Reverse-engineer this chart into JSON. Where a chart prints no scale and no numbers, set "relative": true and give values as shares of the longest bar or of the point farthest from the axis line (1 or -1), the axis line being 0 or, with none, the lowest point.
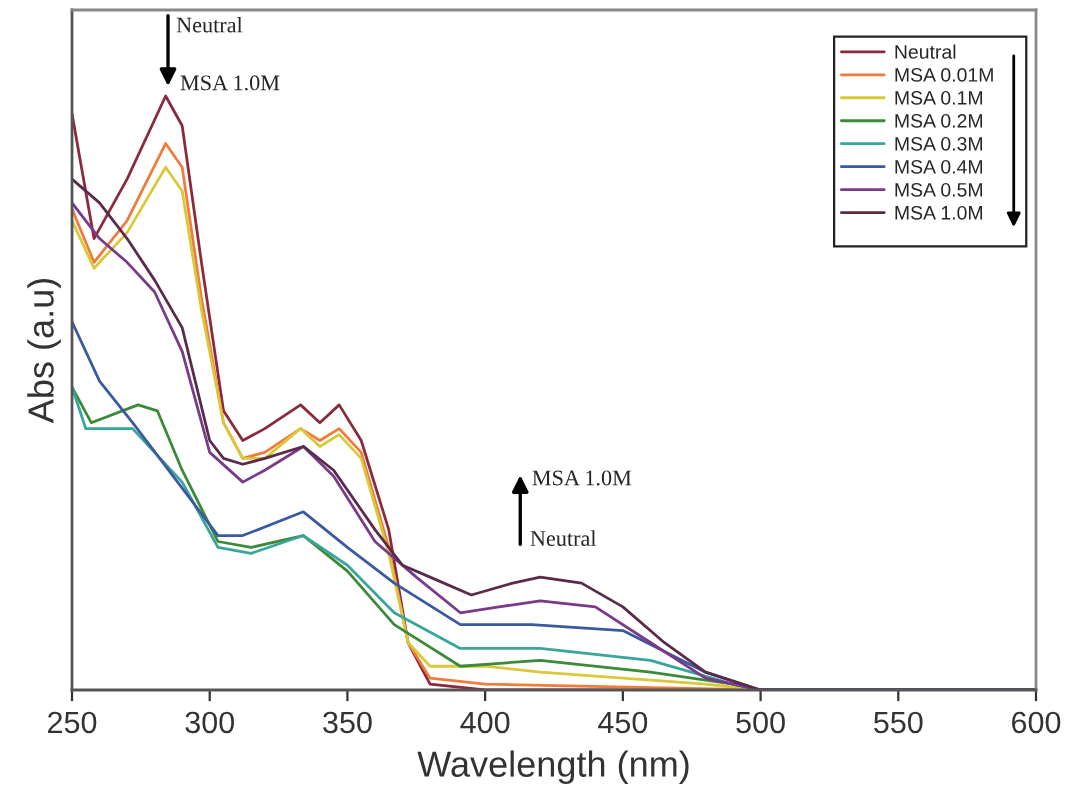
{
  "chart_data": {
    "type": "line",
    "relative": true,
    "xlabel": "Wavelength (nm)",
    "ylabel": "Abs (a.u)",
    "xlim": [
      250,
      600
    ],
    "xticks": [
      250,
      300,
      350,
      400,
      450,
      500,
      550,
      600
    ],
    "legend": "top right",
    "grid": false,
    "marker": "none",
    "line_style": "solid",
    "annotations": [
      "Neutral",
      "MSA 1.0M",
      "MSA 1.0M",
      "Neutral"
    ],
    "series": [
      {
        "name": "Neutral",
        "color": "#8b2a3c",
        "x": [
          250,
          258,
          270,
          284,
          290,
          297,
          305,
          312,
          320,
          333,
          340,
          347,
          355,
          365,
          372,
          380,
          400,
          500,
          600
        ],
        "values": [
          0.97,
          0.76,
          0.86,
          1.0,
          0.95,
          0.72,
          0.47,
          0.42,
          0.44,
          0.48,
          0.45,
          0.48,
          0.42,
          0.27,
          0.08,
          0.01,
          0,
          0,
          0
        ]
      },
      {
        "name": "MSA 0.01M",
        "color": "#f07c3c",
        "x": [
          250,
          258,
          270,
          284,
          290,
          297,
          305,
          312,
          320,
          333,
          340,
          347,
          355,
          365,
          372,
          380,
          400,
          500,
          600
        ],
        "values": [
          0.81,
          0.72,
          0.79,
          0.92,
          0.88,
          0.66,
          0.45,
          0.39,
          0.4,
          0.44,
          0.42,
          0.44,
          0.4,
          0.24,
          0.08,
          0.02,
          0.01,
          0,
          0
        ]
      },
      {
        "name": "MSA 0.1M",
        "color": "#d8c83a",
        "x": [
          250,
          258,
          270,
          284,
          290,
          297,
          305,
          312,
          320,
          333,
          340,
          347,
          355,
          365,
          372,
          380,
          400,
          420,
          450,
          480,
          500,
          600
        ],
        "values": [
          0.79,
          0.71,
          0.77,
          0.88,
          0.84,
          0.64,
          0.45,
          0.39,
          0.39,
          0.44,
          0.41,
          0.43,
          0.39,
          0.23,
          0.08,
          0.04,
          0.04,
          0.03,
          0.02,
          0.01,
          0,
          0
        ]
      },
      {
        "name": "MSA 0.2M",
        "color": "#3a8a3a",
        "x": [
          250,
          257,
          274,
          281,
          290,
          303,
          315,
          334,
          350,
          367,
          391,
          420,
          460,
          490,
          500,
          600
        ],
        "values": [
          0.51,
          0.45,
          0.48,
          0.47,
          0.37,
          0.25,
          0.24,
          0.26,
          0.2,
          0.11,
          0.04,
          0.05,
          0.03,
          0.01,
          0,
          0
        ]
      },
      {
        "name": "MSA 0.3M",
        "color": "#3aa59a",
        "x": [
          250,
          255,
          272,
          290,
          303,
          315,
          334,
          350,
          367,
          391,
          420,
          460,
          490,
          500,
          600
        ],
        "values": [
          0.51,
          0.44,
          0.44,
          0.35,
          0.24,
          0.23,
          0.26,
          0.21,
          0.13,
          0.07,
          0.07,
          0.05,
          0.01,
          0,
          0
        ]
      },
      {
        "name": "MSA 0.4M",
        "color": "#3a5aa0",
        "x": [
          250,
          260,
          272,
          290,
          303,
          312,
          334,
          350,
          367,
          391,
          417,
          450,
          480,
          500,
          600
        ],
        "values": [
          0.62,
          0.52,
          0.45,
          0.34,
          0.26,
          0.26,
          0.3,
          0.24,
          0.18,
          0.11,
          0.11,
          0.1,
          0.03,
          0,
          0
        ]
      },
      {
        "name": "MSA 0.5M",
        "color": "#7a3a8a",
        "x": [
          250,
          260,
          270,
          280,
          290,
          300,
          312,
          320,
          334,
          345,
          360,
          375,
          391,
          405,
          420,
          440,
          460,
          480,
          500,
          600
        ],
        "values": [
          0.82,
          0.76,
          0.72,
          0.67,
          0.57,
          0.4,
          0.35,
          0.37,
          0.41,
          0.36,
          0.25,
          0.19,
          0.13,
          0.14,
          0.15,
          0.14,
          0.08,
          0.02,
          0,
          0
        ]
      },
      {
        "name": "MSA 1.0M",
        "color": "#5a2a4a",
        "x": [
          250,
          260,
          270,
          280,
          290,
          300,
          305,
          312,
          320,
          334,
          345,
          360,
          370,
          380,
          395,
          410,
          420,
          435,
          450,
          465,
          480,
          500,
          600
        ],
        "values": [
          0.86,
          0.82,
          0.76,
          0.69,
          0.61,
          0.42,
          0.39,
          0.38,
          0.39,
          0.41,
          0.37,
          0.27,
          0.21,
          0.19,
          0.16,
          0.18,
          0.19,
          0.18,
          0.14,
          0.08,
          0.03,
          0,
          0
        ]
      }
    ]
  }
}
